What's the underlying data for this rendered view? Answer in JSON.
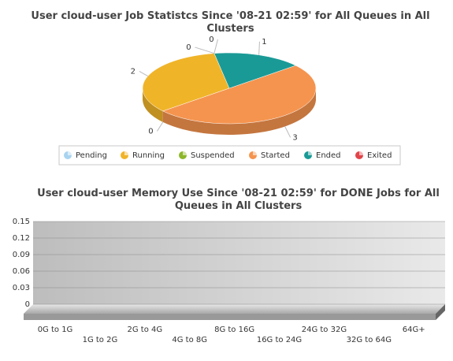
{
  "chart_data": [
    {
      "type": "pie3d",
      "title": "User cloud-user Job Statistcs Since '08-21 02:59' for All Queues in All Clusters",
      "categories": [
        "Pending",
        "Running",
        "Suspended",
        "Started",
        "Ended",
        "Exited"
      ],
      "values": [
        0,
        2,
        0,
        3,
        1,
        0
      ],
      "colors": [
        "#a9d4f0",
        "#f0b429",
        "#8cb72a",
        "#f5944f",
        "#1a9a96",
        "#e0454a"
      ],
      "legend": "bottom"
    },
    {
      "type": "bar3d",
      "title": "User cloud-user Memory Use Since '08-21 02:59' for DONE Jobs for All Queues in All Clusters",
      "categories": [
        "0G to 1G",
        "1G to 2G",
        "2G to 4G",
        "4G to 8G",
        "8G to 16G",
        "16G to 24G",
        "24G to 32G",
        "32G to 64G",
        "64G+"
      ],
      "values": [
        0,
        0,
        0,
        0,
        0,
        0,
        0,
        0,
        0
      ],
      "color": "#5b9bd5",
      "ylim": [
        0,
        0.15
      ],
      "yticks": [
        0,
        0.03,
        0.06,
        0.09,
        0.12,
        0.15
      ],
      "grid": true
    }
  ]
}
